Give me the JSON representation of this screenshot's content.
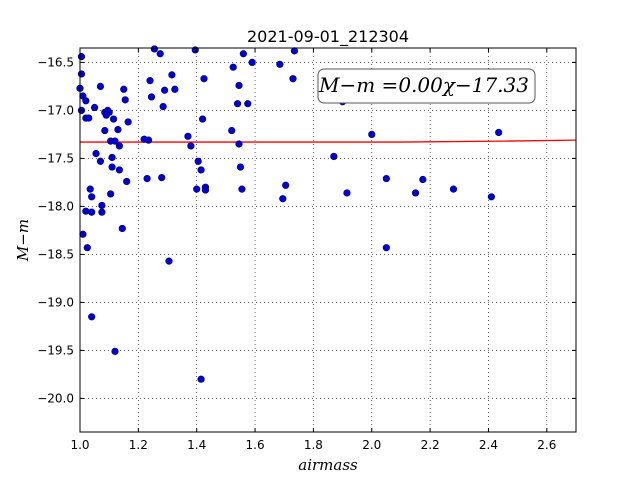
{
  "chart_data": {
    "type": "scatter",
    "title": "2021-09-01_212304",
    "xlabel": "airmass",
    "ylabel": "M−m",
    "xlim": [
      1.0,
      2.7
    ],
    "ylim": [
      -20.35,
      -16.35
    ],
    "y_inverted": true,
    "grid": true,
    "xticks": [
      1.0,
      1.2,
      1.4,
      1.6,
      1.8,
      2.0,
      2.2,
      2.4,
      2.6
    ],
    "xtick_labels": [
      "1.0",
      "1.2",
      "1.4",
      "1.6",
      "1.8",
      "2.0",
      "2.2",
      "2.4",
      "2.6"
    ],
    "yticks": [
      -16.5,
      -17.0,
      -17.5,
      -18.0,
      -18.5,
      -19.0,
      -19.5,
      -20.0
    ],
    "ytick_labels": [
      "−16.5",
      "−17.0",
      "−17.5",
      "−18.0",
      "−18.5",
      "−19.0",
      "−19.5",
      "−20.0"
    ],
    "annotation": "M−m =0.00χ−17.33",
    "point_color": "#0000cc",
    "fit_color": "#ff0000",
    "fit_line": {
      "x": [
        1.0,
        2.1,
        2.45,
        2.7
      ],
      "y": [
        -17.33,
        -17.33,
        -17.32,
        -17.31
      ]
    },
    "series": [
      {
        "x": [
          1.0,
          1.005,
          1.005,
          1.01,
          1.005,
          1.02,
          1.02,
          1.03,
          1.05,
          1.07,
          1.085,
          1.1,
          1.095,
          1.09,
          1.115,
          1.13,
          1.155,
          1.165,
          1.15,
          1.12,
          1.135,
          1.105,
          1.085,
          1.11,
          1.055,
          1.07,
          1.11,
          1.135,
          1.16,
          1.035,
          1.04,
          1.105,
          1.075,
          1.02,
          1.04,
          1.075,
          1.145,
          1.01,
          1.025,
          1.04,
          1.12,
          1.255,
          1.275,
          1.24,
          1.245,
          1.29,
          1.315,
          1.325,
          1.285,
          1.22,
          1.235,
          1.23,
          1.28,
          1.305,
          1.395,
          1.425,
          1.42,
          1.37,
          1.38,
          1.405,
          1.415,
          1.4,
          1.43,
          1.43,
          1.415,
          1.56,
          1.59,
          1.525,
          1.545,
          1.54,
          1.575,
          1.52,
          1.545,
          1.55,
          1.555,
          1.735,
          1.685,
          1.73,
          1.705,
          1.695,
          1.87,
          1.9,
          1.915,
          2.0,
          2.05,
          2.05,
          2.15,
          2.175,
          2.28,
          2.41,
          2.435
        ],
        "y": [
          -16.77,
          -16.44,
          -16.62,
          -16.85,
          -17.0,
          -16.9,
          -17.08,
          -17.08,
          -16.97,
          -16.75,
          -17.02,
          -17.02,
          -17.0,
          -17.05,
          -17.09,
          -17.2,
          -16.89,
          -17.12,
          -16.78,
          -17.32,
          -17.62,
          -17.32,
          -17.21,
          -17.49,
          -17.45,
          -17.53,
          -17.59,
          -17.37,
          -17.74,
          -17.82,
          -17.9,
          -17.87,
          -17.99,
          -18.05,
          -18.06,
          -18.06,
          -18.23,
          -18.29,
          -18.43,
          -19.15,
          -19.51,
          -16.36,
          -16.41,
          -16.69,
          -16.86,
          -16.79,
          -16.63,
          -16.78,
          -16.96,
          -17.3,
          -17.31,
          -17.71,
          -17.7,
          -18.57,
          -16.37,
          -16.67,
          -17.09,
          -17.27,
          -17.37,
          -17.53,
          -17.62,
          -17.82,
          -17.8,
          -17.83,
          -19.8,
          -16.41,
          -16.5,
          -16.55,
          -16.74,
          -16.93,
          -16.93,
          -17.21,
          -17.35,
          -17.59,
          -17.82,
          -16.38,
          -16.52,
          -16.67,
          -17.78,
          -17.92,
          -17.48,
          -16.91,
          -17.86,
          -17.25,
          -17.71,
          -18.43,
          -17.86,
          -17.72,
          -17.82,
          -17.9,
          -17.23
        ]
      }
    ]
  }
}
